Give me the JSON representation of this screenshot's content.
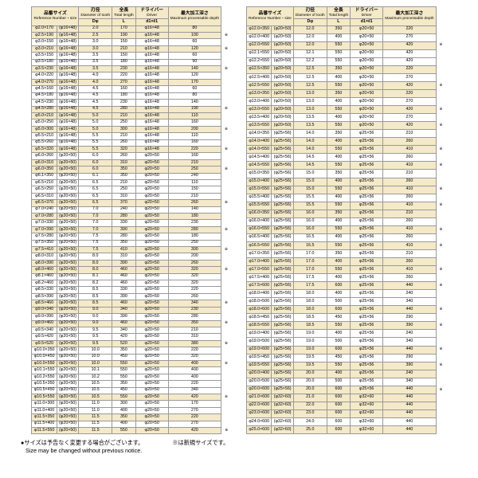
{
  "headers": {
    "ref_jp": "品番サイズ",
    "ref_en": "Reference Number・size",
    "d_jp": "刃径",
    "d_en": "Diameter of tooth",
    "d_sym": "Dφ",
    "l_jp": "全長",
    "l_en": "Total length",
    "l_sym": "L",
    "drv_jp": "ドライバー",
    "drv_en": "Driver",
    "drv_sym": "d1×ℓ1",
    "dep_jp": "最大加工深さ",
    "dep_en": "Maximum processable depth"
  },
  "table_style": {
    "shaded_bg": "#f4e9c8",
    "white_bg": "#ffffff",
    "border_color": "#999999",
    "font_size_pt": 5.3
  },
  "footnote_jp": "●サイズは予告なく変更する場合がございます。",
  "footnote_en": "Size may be changed without previous notice.",
  "footnote_mark": "※は新規サイズです。",
  "left": [
    {
      "a": "φ2.0×170",
      "b": "(φ16×48)",
      "c": "2.0",
      "d": "170",
      "e": "φ16×48",
      "f": "80",
      "s": 1,
      "m": ""
    },
    {
      "a": "φ2.5×190",
      "b": "(φ16×48)",
      "c": "2.5",
      "d": "190",
      "e": "φ16×48",
      "f": "100",
      "s": 1,
      "m": "※"
    },
    {
      "a": "φ3.0×150",
      "b": "(φ16×48)",
      "c": "3.0",
      "d": "150",
      "e": "φ16×48",
      "f": "60",
      "s": 0,
      "m": ""
    },
    {
      "a": "φ3.0×210",
      "b": "(φ16×48)",
      "c": "3.0",
      "d": "210",
      "e": "φ16×48",
      "f": "120",
      "s": 1,
      "m": "※"
    },
    {
      "a": "φ3.5×150",
      "b": "(φ16×48)",
      "c": "3.5",
      "d": "150",
      "e": "φ16×48",
      "f": "60",
      "s": 0,
      "m": ""
    },
    {
      "a": "φ3.5×180",
      "b": "(φ16×48)",
      "c": "3.5",
      "d": "180",
      "e": "φ16×48",
      "f": "90",
      "s": 0,
      "m": ""
    },
    {
      "a": "φ3.5×230",
      "b": "(φ16×48)",
      "c": "3.5",
      "d": "230",
      "e": "φ16×48",
      "f": "140",
      "s": 1,
      "m": "※"
    },
    {
      "a": "φ4.0×220",
      "b": "(φ16×48)",
      "c": "4.0",
      "d": "220",
      "e": "φ16×48",
      "f": "120",
      "s": 0,
      "m": ""
    },
    {
      "a": "φ4.0×270",
      "b": "(φ16×48)",
      "c": "4.0",
      "d": "270",
      "e": "φ16×48",
      "f": "170",
      "s": 1,
      "m": ""
    },
    {
      "a": "φ4.5×160",
      "b": "(φ16×48)",
      "c": "4.5",
      "d": "160",
      "e": "φ16×48",
      "f": "60",
      "s": 0,
      "m": ""
    },
    {
      "a": "φ4.5×180",
      "b": "(φ16×48)",
      "c": "4.5",
      "d": "180",
      "e": "φ16×48",
      "f": "80",
      "s": 0,
      "m": ""
    },
    {
      "a": "φ4.5×230",
      "b": "(φ16×48)",
      "c": "4.5",
      "d": "230",
      "e": "φ16×48",
      "f": "140",
      "s": 0,
      "m": ""
    },
    {
      "a": "φ4.5×280",
      "b": "(φ16×48)",
      "c": "4.5",
      "d": "280",
      "e": "φ16×48",
      "f": "190",
      "s": 1,
      "m": "※"
    },
    {
      "a": "φ5.0×210",
      "b": "(φ16×48)",
      "c": "5.0",
      "d": "210",
      "e": "φ16×48",
      "f": "110",
      "s": 1,
      "m": ""
    },
    {
      "a": "φ5.0×250",
      "b": "(φ16×48)",
      "c": "5.0",
      "d": "250",
      "e": "φ16×48",
      "f": "160",
      "s": 0,
      "m": ""
    },
    {
      "a": "φ5.0×300",
      "b": "(φ16×48)",
      "c": "5.0",
      "d": "300",
      "e": "φ16×48",
      "f": "200",
      "s": 1,
      "m": "※"
    },
    {
      "a": "φ5.5×210",
      "b": "(φ16×48)",
      "c": "5.5",
      "d": "210",
      "e": "φ16×48",
      "f": "110",
      "s": 0,
      "m": ""
    },
    {
      "a": "φ5.5×260",
      "b": "(φ16×48)",
      "c": "5.5",
      "d": "260",
      "e": "φ16×48",
      "f": "160",
      "s": 0,
      "m": ""
    },
    {
      "a": "φ5.5×320",
      "b": "(φ16×48)",
      "c": "5.5",
      "d": "320",
      "e": "φ16×48",
      "f": "220",
      "s": 1,
      "m": "※"
    },
    {
      "a": "φ6.0×260",
      "b": "(φ20×50)",
      "c": "6.0",
      "d": "260",
      "e": "φ20×50",
      "f": "160",
      "s": 0,
      "m": ""
    },
    {
      "a": "φ6.0×310",
      "b": "(φ20×50)",
      "c": "6.0",
      "d": "310",
      "e": "φ20×50",
      "f": "210",
      "s": 1,
      "m": ""
    },
    {
      "a": "φ6.0×350",
      "b": "(φ20×50)",
      "c": "6.0",
      "d": "350",
      "e": "φ20×50",
      "f": "250",
      "s": 1,
      "m": "※"
    },
    {
      "a": "φ6.1×350",
      "b": "(φ20×50)",
      "c": "6.1",
      "d": "350",
      "e": "φ20×50",
      "f": "240",
      "s": 0,
      "m": ""
    },
    {
      "a": "φ6.5×210",
      "b": "(φ20×50)",
      "c": "6.5",
      "d": "210",
      "e": "φ20×50",
      "f": "110",
      "s": 0,
      "m": ""
    },
    {
      "a": "φ6.5×250",
      "b": "(φ20×50)",
      "c": "6.5",
      "d": "250",
      "e": "φ20×50",
      "f": "150",
      "s": 0,
      "m": ""
    },
    {
      "a": "φ6.5×310",
      "b": "(φ20×50)",
      "c": "6.5",
      "d": "310",
      "e": "φ20×50",
      "f": "210",
      "s": 0,
      "m": ""
    },
    {
      "a": "φ6.5×370",
      "b": "(φ20×50)",
      "c": "6.5",
      "d": "370",
      "e": "φ20×50",
      "f": "260",
      "s": 1,
      "m": "※"
    },
    {
      "a": "φ7.0×240",
      "b": "(φ20×50)",
      "c": "7.0",
      "d": "240",
      "e": "φ20×50",
      "f": "140",
      "s": 0,
      "m": ""
    },
    {
      "a": "φ7.0×280",
      "b": "(φ20×50)",
      "c": "7.0",
      "d": "280",
      "e": "φ20×50",
      "f": "180",
      "s": 1,
      "m": ""
    },
    {
      "a": "φ7.0×330",
      "b": "(φ20×50)",
      "c": "7.0",
      "d": "330",
      "e": "φ20×50",
      "f": "230",
      "s": 0,
      "m": ""
    },
    {
      "a": "φ7.0×390",
      "b": "(φ20×50)",
      "c": "7.0",
      "d": "390",
      "e": "φ20×50",
      "f": "280",
      "s": 1,
      "m": "※"
    },
    {
      "a": "φ7.5×280",
      "b": "(φ20×50)",
      "c": "7.5",
      "d": "280",
      "e": "φ20×50",
      "f": "180",
      "s": 0,
      "m": ""
    },
    {
      "a": "φ7.5×350",
      "b": "(φ20×50)",
      "c": "7.5",
      "d": "350",
      "e": "φ20×50",
      "f": "250",
      "s": 0,
      "m": ""
    },
    {
      "a": "φ7.5×410",
      "b": "(φ20×50)",
      "c": "7.5",
      "d": "410",
      "e": "φ20×50",
      "f": "300",
      "s": 1,
      "m": "※"
    },
    {
      "a": "φ8.0×310",
      "b": "(φ20×50)",
      "c": "8.0",
      "d": "310",
      "e": "φ20×50",
      "f": "200",
      "s": 0,
      "m": ""
    },
    {
      "a": "φ8.0×390",
      "b": "(φ20×50)",
      "c": "8.0",
      "d": "390",
      "e": "φ20×50",
      "f": "260",
      "s": 1,
      "m": ""
    },
    {
      "a": "φ8.0×460",
      "b": "(φ20×50)",
      "c": "8.0",
      "d": "460",
      "e": "φ20×50",
      "f": "320",
      "s": 1,
      "m": "※"
    },
    {
      "a": "φ8.1×460",
      "b": "(φ20×50)",
      "c": "8.1",
      "d": "460",
      "e": "φ20×50",
      "f": "320",
      "s": 0,
      "m": ""
    },
    {
      "a": "φ8.2×460",
      "b": "(φ20×50)",
      "c": "8.2",
      "d": "460",
      "e": "φ20×50",
      "f": "320",
      "s": 0,
      "m": ""
    },
    {
      "a": "φ8.5×330",
      "b": "(φ20×50)",
      "c": "8.5",
      "d": "330",
      "e": "φ20×50",
      "f": "220",
      "s": 0,
      "m": ""
    },
    {
      "a": "φ8.5×390",
      "b": "(φ20×50)",
      "c": "8.5",
      "d": "390",
      "e": "φ20×50",
      "f": "260",
      "s": 0,
      "m": ""
    },
    {
      "a": "φ8.5×460",
      "b": "(φ20×50)",
      "c": "8.5",
      "d": "460",
      "e": "φ20×50",
      "f": "340",
      "s": 1,
      "m": "※"
    },
    {
      "a": "φ9.0×340",
      "b": "(φ20×50)",
      "c": "9.0",
      "d": "340",
      "e": "φ20×50",
      "f": "230",
      "s": 1,
      "m": ""
    },
    {
      "a": "φ9.0×390",
      "b": "(φ20×50)",
      "c": "9.0",
      "d": "390",
      "e": "φ20×50",
      "f": "280",
      "s": 0,
      "m": ""
    },
    {
      "a": "φ9.0×460",
      "b": "(φ20×50)",
      "c": "9.0",
      "d": "460",
      "e": "φ20×50",
      "f": "350",
      "s": 1,
      "m": "※"
    },
    {
      "a": "φ9.5×340",
      "b": "(φ20×50)",
      "c": "9.5",
      "d": "340",
      "e": "φ20×50",
      "f": "210",
      "s": 0,
      "m": ""
    },
    {
      "a": "φ9.5×420",
      "b": "(φ20×50)",
      "c": "9.5",
      "d": "420",
      "e": "φ20×50",
      "f": "310",
      "s": 0,
      "m": ""
    },
    {
      "a": "φ9.5×520",
      "b": "(φ20×50)",
      "c": "9.5",
      "d": "520",
      "e": "φ20×50",
      "f": "380",
      "s": 1,
      "m": "※"
    },
    {
      "a": "φ10.0×350",
      "b": "(φ20×50)",
      "c": "10.0",
      "d": "350",
      "e": "φ20×50",
      "f": "220",
      "s": 0,
      "m": ""
    },
    {
      "a": "φ10.0×450",
      "b": "(φ20×50)",
      "c": "10.0",
      "d": "450",
      "e": "φ20×50",
      "f": "320",
      "s": 0,
      "m": ""
    },
    {
      "a": "φ10.0×550",
      "b": "(φ20×50)",
      "c": "10.0",
      "d": "550",
      "e": "φ20×50",
      "f": "400",
      "s": 1,
      "m": "※"
    },
    {
      "a": "φ10.1×550",
      "b": "(φ20×50)",
      "c": "10.1",
      "d": "550",
      "e": "φ20×50",
      "f": "400",
      "s": 0,
      "m": ""
    },
    {
      "a": "φ10.2×550",
      "b": "(φ20×50)",
      "c": "10.2",
      "d": "550",
      "e": "φ20×50",
      "f": "400",
      "s": 0,
      "m": ""
    },
    {
      "a": "φ10.5×350",
      "b": "(φ20×50)",
      "c": "10.5",
      "d": "350",
      "e": "φ20×50",
      "f": "220",
      "s": 0,
      "m": ""
    },
    {
      "a": "φ10.5×450",
      "b": "(φ20×50)",
      "c": "10.5",
      "d": "450",
      "e": "φ20×50",
      "f": "340",
      "s": 0,
      "m": ""
    },
    {
      "a": "φ10.5×550",
      "b": "(φ20×50)",
      "c": "10.5",
      "d": "550",
      "e": "φ20×50",
      "f": "420",
      "s": 1,
      "m": "※"
    },
    {
      "a": "φ11.0×300",
      "b": "(φ20×50)",
      "c": "11.0",
      "d": "300",
      "e": "φ20×50",
      "f": "170",
      "s": 0,
      "m": ""
    },
    {
      "a": "φ11.0×400",
      "b": "(φ20×50)",
      "c": "11.0",
      "d": "400",
      "e": "φ20×50",
      "f": "270",
      "s": 0,
      "m": ""
    },
    {
      "a": "φ11.5×350",
      "b": "(φ20×50)",
      "c": "11.5",
      "d": "350",
      "e": "φ20×50",
      "f": "220",
      "s": 1,
      "m": ""
    },
    {
      "a": "φ11.5×400",
      "b": "(φ20×50)",
      "c": "11.5",
      "d": "400",
      "e": "φ20×50",
      "f": "270",
      "s": 0,
      "m": ""
    },
    {
      "a": "φ11.5×550",
      "b": "(φ20×50)",
      "c": "11.5",
      "d": "550",
      "e": "φ20×50",
      "f": "420",
      "s": 1,
      "m": "※"
    }
  ],
  "right": [
    {
      "a": "φ12.0×350",
      "b": "(φ20×50)",
      "c": "12.0",
      "d": "350",
      "e": "φ20×50",
      "f": "220",
      "s": 1,
      "m": ""
    },
    {
      "a": "φ12.0×400",
      "b": "(φ20×50)",
      "c": "12.0",
      "d": "400",
      "e": "φ20×50",
      "f": "270",
      "s": 0,
      "m": ""
    },
    {
      "a": "φ12.0×550",
      "b": "(φ20×50)",
      "c": "12.0",
      "d": "550",
      "e": "φ20×50",
      "f": "420",
      "s": 1,
      "m": "※"
    },
    {
      "a": "φ12.1×550",
      "b": "(φ20×50)",
      "c": "12.1",
      "d": "550",
      "e": "φ20×50",
      "f": "420",
      "s": 0,
      "m": ""
    },
    {
      "a": "φ12.2×550",
      "b": "(φ20×50)",
      "c": "12.2",
      "d": "550",
      "e": "φ20×50",
      "f": "420",
      "s": 0,
      "m": ""
    },
    {
      "a": "φ12.5×350",
      "b": "(φ20×50)",
      "c": "12.5",
      "d": "350",
      "e": "φ20×50",
      "f": "220",
      "s": 1,
      "m": ""
    },
    {
      "a": "φ12.5×400",
      "b": "(φ20×50)",
      "c": "12.5",
      "d": "400",
      "e": "φ20×50",
      "f": "270",
      "s": 0,
      "m": ""
    },
    {
      "a": "φ12.5×550",
      "b": "(φ20×50)",
      "c": "12.5",
      "d": "550",
      "e": "φ20×50",
      "f": "420",
      "s": 1,
      "m": "※"
    },
    {
      "a": "φ13.0×350",
      "b": "(φ20×50)",
      "c": "13.0",
      "d": "350",
      "e": "φ20×50",
      "f": "220",
      "s": 1,
      "m": ""
    },
    {
      "a": "φ13.0×400",
      "b": "(φ20×50)",
      "c": "13.0",
      "d": "400",
      "e": "φ20×50",
      "f": "270",
      "s": 0,
      "m": ""
    },
    {
      "a": "φ13.0×550",
      "b": "(φ20×50)",
      "c": "13.0",
      "d": "550",
      "e": "φ20×50",
      "f": "420",
      "s": 1,
      "m": "※"
    },
    {
      "a": "φ13.5×400",
      "b": "(φ20×50)",
      "c": "13.5",
      "d": "400",
      "e": "φ20×50",
      "f": "270",
      "s": 0,
      "m": ""
    },
    {
      "a": "φ13.5×550",
      "b": "(φ20×50)",
      "c": "13.5",
      "d": "550",
      "e": "φ20×50",
      "f": "420",
      "s": 1,
      "m": "※"
    },
    {
      "a": "φ14.0×350",
      "b": "(φ25×56)",
      "c": "14.0",
      "d": "350",
      "e": "φ25×56",
      "f": "210",
      "s": 0,
      "m": ""
    },
    {
      "a": "φ14.0×400",
      "b": "(φ25×56)",
      "c": "14.0",
      "d": "400",
      "e": "φ25×56",
      "f": "260",
      "s": 1,
      "m": ""
    },
    {
      "a": "φ14.0×550",
      "b": "(φ25×56)",
      "c": "14.0",
      "d": "550",
      "e": "φ25×56",
      "f": "410",
      "s": 1,
      "m": "※"
    },
    {
      "a": "φ14.5×400",
      "b": "(φ25×56)",
      "c": "14.5",
      "d": "400",
      "e": "φ25×56",
      "f": "260",
      "s": 0,
      "m": ""
    },
    {
      "a": "φ14.5×550",
      "b": "(φ25×56)",
      "c": "14.5",
      "d": "550",
      "e": "φ25×56",
      "f": "410",
      "s": 1,
      "m": "※"
    },
    {
      "a": "φ15.0×350",
      "b": "(φ25×56)",
      "c": "15.0",
      "d": "350",
      "e": "φ25×56",
      "f": "210",
      "s": 0,
      "m": ""
    },
    {
      "a": "φ15.0×400",
      "b": "(φ25×56)",
      "c": "15.0",
      "d": "400",
      "e": "φ25×56",
      "f": "260",
      "s": 1,
      "m": ""
    },
    {
      "a": "φ15.0×550",
      "b": "(φ25×56)",
      "c": "15.0",
      "d": "550",
      "e": "φ25×56",
      "f": "410",
      "s": 1,
      "m": "※"
    },
    {
      "a": "φ15.5×400",
      "b": "(φ25×56)",
      "c": "15.5",
      "d": "400",
      "e": "φ25×56",
      "f": "260",
      "s": 0,
      "m": ""
    },
    {
      "a": "φ15.5×550",
      "b": "(φ25×56)",
      "c": "15.5",
      "d": "550",
      "e": "φ25×56",
      "f": "410",
      "s": 1,
      "m": "※"
    },
    {
      "a": "φ16.0×350",
      "b": "(φ25×56)",
      "c": "16.0",
      "d": "350",
      "e": "φ25×56",
      "f": "210",
      "s": 1,
      "m": ""
    },
    {
      "a": "φ16.0×400",
      "b": "(φ25×56)",
      "c": "16.0",
      "d": "400",
      "e": "φ25×56",
      "f": "260",
      "s": 0,
      "m": ""
    },
    {
      "a": "φ16.0×550",
      "b": "(φ25×56)",
      "c": "16.0",
      "d": "550",
      "e": "φ25×56",
      "f": "410",
      "s": 1,
      "m": "※"
    },
    {
      "a": "φ16.5×400",
      "b": "(φ25×56)",
      "c": "16.5",
      "d": "400",
      "e": "φ25×56",
      "f": "260",
      "s": 0,
      "m": ""
    },
    {
      "a": "φ16.5×550",
      "b": "(φ25×56)",
      "c": "16.5",
      "d": "550",
      "e": "φ25×56",
      "f": "410",
      "s": 1,
      "m": "※"
    },
    {
      "a": "φ17.0×350",
      "b": "(φ25×56)",
      "c": "17.0",
      "d": "350",
      "e": "φ25×56",
      "f": "210",
      "s": 0,
      "m": ""
    },
    {
      "a": "φ17.0×400",
      "b": "(φ25×56)",
      "c": "17.0",
      "d": "400",
      "e": "φ25×56",
      "f": "260",
      "s": 1,
      "m": ""
    },
    {
      "a": "φ17.0×550",
      "b": "(φ25×56)",
      "c": "17.0",
      "d": "550",
      "e": "φ25×56",
      "f": "410",
      "s": 1,
      "m": "※"
    },
    {
      "a": "φ17.5×400",
      "b": "(φ25×56)",
      "c": "17.5",
      "d": "400",
      "e": "φ25×56",
      "f": "260",
      "s": 0,
      "m": ""
    },
    {
      "a": "φ17.5×600",
      "b": "(φ25×56)",
      "c": "17.5",
      "d": "600",
      "e": "φ25×56",
      "f": "440",
      "s": 1,
      "m": "※"
    },
    {
      "a": "φ18.0×400",
      "b": "(φ25×56)",
      "c": "18.0",
      "d": "400",
      "e": "φ25×56",
      "f": "240",
      "s": 0,
      "m": ""
    },
    {
      "a": "φ18.0×500",
      "b": "(φ25×56)",
      "c": "18.0",
      "d": "500",
      "e": "φ25×56",
      "f": "340",
      "s": 0,
      "m": ""
    },
    {
      "a": "φ18.0×600",
      "b": "(φ25×56)",
      "c": "18.0",
      "d": "600",
      "e": "φ25×56",
      "f": "440",
      "s": 1,
      "m": "※"
    },
    {
      "a": "φ18.5×450",
      "b": "(φ25×56)",
      "c": "18.5",
      "d": "450",
      "e": "φ25×56",
      "f": "290",
      "s": 0,
      "m": ""
    },
    {
      "a": "φ18.5×550",
      "b": "(φ25×56)",
      "c": "18.5",
      "d": "550",
      "e": "φ25×56",
      "f": "390",
      "s": 1,
      "m": "※"
    },
    {
      "a": "φ19.0×400",
      "b": "(φ25×56)",
      "c": "19.0",
      "d": "400",
      "e": "φ25×56",
      "f": "240",
      "s": 0,
      "m": ""
    },
    {
      "a": "φ19.0×500",
      "b": "(φ25×56)",
      "c": "19.0",
      "d": "500",
      "e": "φ25×56",
      "f": "340",
      "s": 0,
      "m": ""
    },
    {
      "a": "φ19.0×600",
      "b": "(φ25×56)",
      "c": "19.0",
      "d": "600",
      "e": "φ25×56",
      "f": "440",
      "s": 1,
      "m": "※"
    },
    {
      "a": "φ19.5×450",
      "b": "(φ25×56)",
      "c": "19.5",
      "d": "450",
      "e": "φ25×56",
      "f": "290",
      "s": 0,
      "m": ""
    },
    {
      "a": "φ19.5×550",
      "b": "(φ25×56)",
      "c": "19.5",
      "d": "550",
      "e": "φ25×56",
      "f": "390",
      "s": 1,
      "m": "※"
    },
    {
      "a": "φ20.0×400",
      "b": "(φ25×56)",
      "c": "20.0",
      "d": "400",
      "e": "φ25×56",
      "f": "240",
      "s": 1,
      "m": ""
    },
    {
      "a": "φ20.0×500",
      "b": "(φ25×56)",
      "c": "20.0",
      "d": "500",
      "e": "φ25×56",
      "f": "340",
      "s": 0,
      "m": ""
    },
    {
      "a": "φ20.0×600",
      "b": "(φ25×56)",
      "c": "20.0",
      "d": "600",
      "e": "φ25×56",
      "f": "440",
      "s": 1,
      "m": "※"
    },
    {
      "a": "φ21.0×600",
      "b": "(φ32×60)",
      "c": "21.0",
      "d": "600",
      "e": "φ32×60",
      "f": "440",
      "s": 1,
      "m": ""
    },
    {
      "a": "φ22.0×600",
      "b": "(φ32×60)",
      "c": "22.0",
      "d": "600",
      "e": "φ32×60",
      "f": "440",
      "s": 1,
      "m": ""
    },
    {
      "a": "φ23.0×600",
      "b": "(φ32×60)",
      "c": "23.0",
      "d": "600",
      "e": "φ32×60",
      "f": "440",
      "s": 1,
      "m": ""
    },
    {
      "a": "φ24.0×600",
      "b": "(φ32×60)",
      "c": "24.0",
      "d": "600",
      "e": "φ32×60",
      "f": "440",
      "s": 0,
      "m": ""
    },
    {
      "a": "φ25.0×600",
      "b": "(φ32×60)",
      "c": "25.0",
      "d": "600",
      "e": "φ32×60",
      "f": "440",
      "s": 1,
      "m": ""
    }
  ]
}
